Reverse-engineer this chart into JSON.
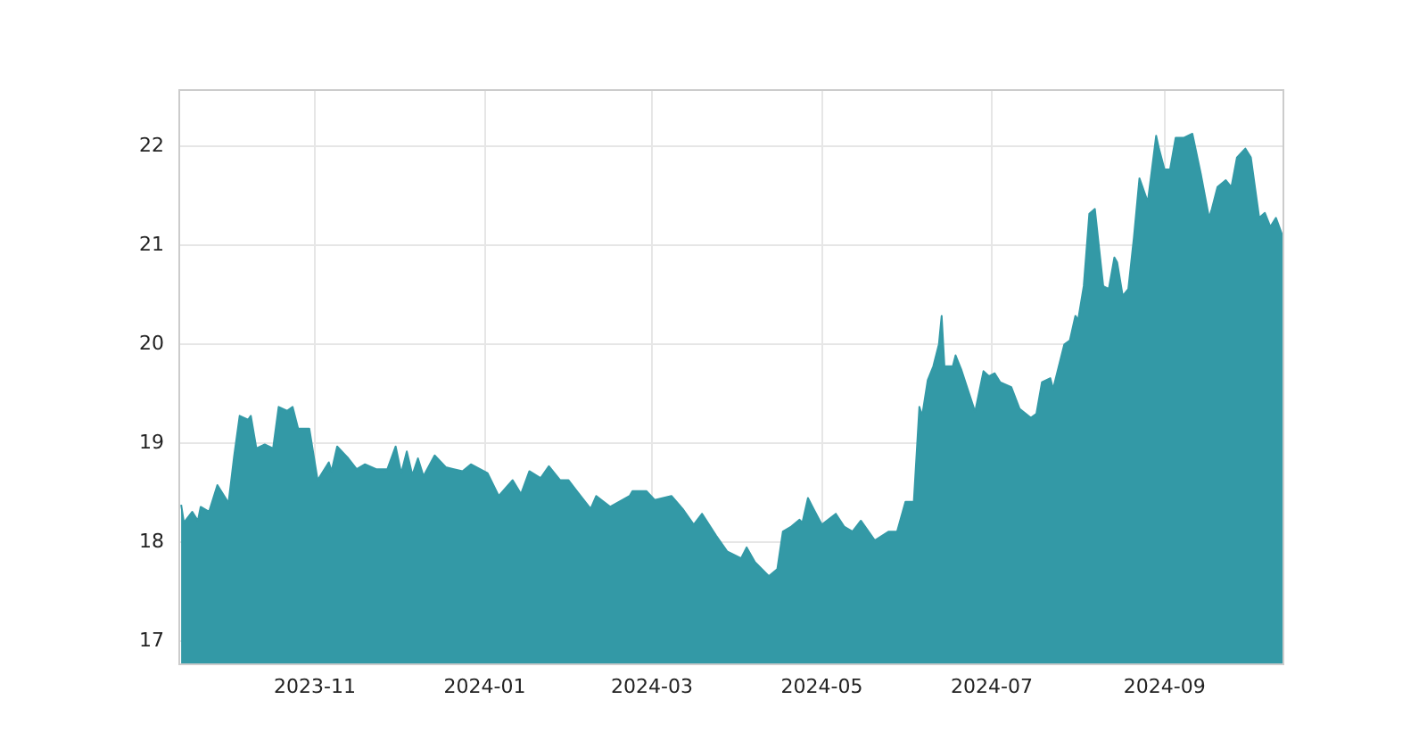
{
  "chart_data": {
    "type": "area",
    "color": "#3399a6",
    "grid": true,
    "legend": false,
    "xlim": [
      "2023-09-13",
      "2024-10-14"
    ],
    "ylim": [
      16.76,
      22.58
    ],
    "xticks": [
      "2023-11",
      "2024-01",
      "2024-03",
      "2024-05",
      "2024-07",
      "2024-09"
    ],
    "yticks": [
      17,
      18,
      19,
      20,
      21,
      22
    ],
    "x": [
      "2023-09-14",
      "2023-09-15",
      "2023-09-18",
      "2023-09-20",
      "2023-09-21",
      "2023-09-24",
      "2023-09-27",
      "2023-10-01",
      "2023-10-03",
      "2023-10-05",
      "2023-10-08",
      "2023-10-09",
      "2023-10-11",
      "2023-10-14",
      "2023-10-17",
      "2023-10-19",
      "2023-10-22",
      "2023-10-24",
      "2023-10-26",
      "2023-10-30",
      "2023-11-02",
      "2023-11-06",
      "2023-11-07",
      "2023-11-09",
      "2023-11-13",
      "2023-11-16",
      "2023-11-19",
      "2023-11-23",
      "2023-11-27",
      "2023-11-30",
      "2023-12-02",
      "2023-12-04",
      "2023-12-06",
      "2023-12-08",
      "2023-12-10",
      "2023-12-14",
      "2023-12-18",
      "2023-12-24",
      "2023-12-27",
      "2024-01-02",
      "2024-01-06",
      "2024-01-11",
      "2024-01-14",
      "2024-01-17",
      "2024-01-21",
      "2024-01-24",
      "2024-01-28",
      "2024-01-31",
      "2024-02-03",
      "2024-02-08",
      "2024-02-10",
      "2024-02-15",
      "2024-02-22",
      "2024-02-23",
      "2024-02-28",
      "2024-03-02",
      "2024-03-08",
      "2024-03-12",
      "2024-03-16",
      "2024-03-19",
      "2024-03-24",
      "2024-03-28",
      "2024-04-02",
      "2024-04-04",
      "2024-04-07",
      "2024-04-12",
      "2024-04-15",
      "2024-04-17",
      "2024-04-20",
      "2024-04-23",
      "2024-04-24",
      "2024-04-26",
      "2024-04-28",
      "2024-05-01",
      "2024-05-06",
      "2024-05-09",
      "2024-05-12",
      "2024-05-15",
      "2024-05-20",
      "2024-05-25",
      "2024-05-28",
      "2024-05-31",
      "2024-06-03",
      "2024-06-05",
      "2024-06-06",
      "2024-06-08",
      "2024-06-10",
      "2024-06-12",
      "2024-06-13",
      "2024-06-14",
      "2024-06-17",
      "2024-06-18",
      "2024-06-20",
      "2024-06-25",
      "2024-06-28",
      "2024-06-30",
      "2024-07-02",
      "2024-07-04",
      "2024-07-08",
      "2024-07-11",
      "2024-07-15",
      "2024-07-17",
      "2024-07-19",
      "2024-07-22",
      "2024-07-23",
      "2024-07-27",
      "2024-07-29",
      "2024-07-31",
      "2024-08-01",
      "2024-08-03",
      "2024-08-05",
      "2024-08-07",
      "2024-08-10",
      "2024-08-12",
      "2024-08-14",
      "2024-08-15",
      "2024-08-17",
      "2024-08-19",
      "2024-08-21",
      "2024-08-23",
      "2024-08-26",
      "2024-08-29",
      "2024-08-30",
      "2024-09-01",
      "2024-09-03",
      "2024-09-05",
      "2024-09-08",
      "2024-09-11",
      "2024-09-14",
      "2024-09-17",
      "2024-09-18",
      "2024-09-20",
      "2024-09-23",
      "2024-09-25",
      "2024-09-27",
      "2024-09-30",
      "2024-10-02",
      "2024-10-05",
      "2024-10-07",
      "2024-10-09",
      "2024-10-11",
      "2024-10-14"
    ],
    "values": [
      18.38,
      18.2,
      18.31,
      18.22,
      18.36,
      18.31,
      18.58,
      18.4,
      18.87,
      19.28,
      19.24,
      19.28,
      18.95,
      18.99,
      18.95,
      19.37,
      19.33,
      19.37,
      19.15,
      19.15,
      18.63,
      18.81,
      18.72,
      18.97,
      18.85,
      18.74,
      18.79,
      18.74,
      18.74,
      18.97,
      18.7,
      18.92,
      18.68,
      18.85,
      18.67,
      18.88,
      18.76,
      18.72,
      18.79,
      18.7,
      18.47,
      18.63,
      18.49,
      18.72,
      18.65,
      18.77,
      18.63,
      18.63,
      18.52,
      18.34,
      18.47,
      18.36,
      18.47,
      18.52,
      18.52,
      18.43,
      18.47,
      18.34,
      18.18,
      18.29,
      18.07,
      17.91,
      17.84,
      17.95,
      17.8,
      17.66,
      17.73,
      18.11,
      18.16,
      18.23,
      18.2,
      18.45,
      18.34,
      18.18,
      18.29,
      18.16,
      18.11,
      18.22,
      18.02,
      18.11,
      18.11,
      18.41,
      18.41,
      19.37,
      19.28,
      19.64,
      19.78,
      20.0,
      20.29,
      19.78,
      19.78,
      19.89,
      19.75,
      19.32,
      19.73,
      19.68,
      19.71,
      19.62,
      19.57,
      19.35,
      19.26,
      19.3,
      19.62,
      19.66,
      19.55,
      20.0,
      20.04,
      20.29,
      20.25,
      20.59,
      21.32,
      21.37,
      20.59,
      20.56,
      20.88,
      20.83,
      20.49,
      20.56,
      21.08,
      21.68,
      21.44,
      22.11,
      21.98,
      21.77,
      21.77,
      22.09,
      22.09,
      22.13,
      21.73,
      21.28,
      21.37,
      21.59,
      21.66,
      21.59,
      21.89,
      21.98,
      21.89,
      21.28,
      21.33,
      21.19,
      21.28,
      21.05
    ]
  }
}
